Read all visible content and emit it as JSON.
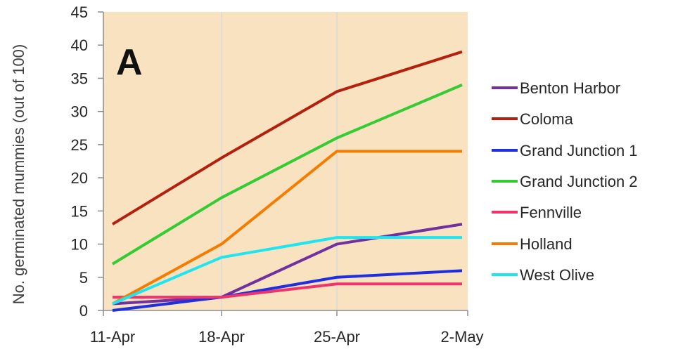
{
  "chart_data": {
    "type": "line",
    "panel_label": "A",
    "title": "",
    "xlabel": "",
    "ylabel": "No. germinated mummies (out of 100)",
    "categories": [
      "11-Apr",
      "18-Apr",
      "25-Apr",
      "2-May"
    ],
    "ylim": [
      0,
      45
    ],
    "yticks": [
      0,
      5,
      10,
      15,
      20,
      25,
      30,
      35,
      40,
      45
    ],
    "grid": false,
    "legend_position": "right",
    "plot_background": "#f8e2c0",
    "series": [
      {
        "name": "Benton Harbor",
        "color": "#7030a0",
        "values": [
          1,
          2,
          10,
          13
        ]
      },
      {
        "name": "Coloma",
        "color": "#b3200e",
        "values": [
          13,
          23,
          33,
          39
        ]
      },
      {
        "name": "Grand Junction 1",
        "color": "#1f2fe0",
        "values": [
          0,
          2,
          5,
          6
        ]
      },
      {
        "name": "Grand Junction 2",
        "color": "#33cc33",
        "values": [
          7,
          17,
          26,
          34
        ]
      },
      {
        "name": "Fennville",
        "color": "#f0336b",
        "values": [
          2,
          2,
          4,
          4
        ]
      },
      {
        "name": "Holland",
        "color": "#f57c00",
        "values": [
          1,
          10,
          24,
          24
        ]
      },
      {
        "name": "West Olive",
        "color": "#1fe5f0",
        "values": [
          1,
          8,
          11,
          11
        ]
      }
    ]
  }
}
